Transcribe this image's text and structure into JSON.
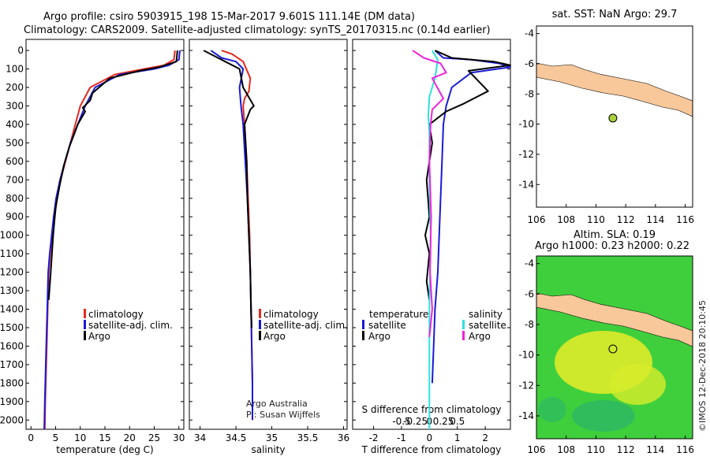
{
  "header": {
    "line1": "Argo profile: csiro 5903915_198 15-Mar-2017 9.601S 111.14E (DM data)",
    "line2": "Climatology: CARS2009. Satellite-adjusted climatology: synTS_20170315.nc (0.14d earlier)"
  },
  "colors": {
    "climatology": "#e8281e",
    "satellite": "#1a1ad6",
    "argo": "#000000",
    "sal_sat": "#2ee0e0",
    "sal_argo": "#ee22dd",
    "land": "#f8c89a",
    "sst_bg": "#ffffff",
    "sla_green": "#3fcf3c",
    "sla_yellow": "#e8ec28"
  },
  "depth_axis": {
    "ticks": [
      0,
      100,
      200,
      300,
      400,
      500,
      600,
      700,
      800,
      900,
      1000,
      1100,
      1200,
      1300,
      1400,
      1500,
      1600,
      1700,
      1800,
      1900,
      2000
    ],
    "range": [
      2050,
      -60
    ]
  },
  "panels": {
    "temperature": {
      "xlabel": "temperature (deg C)",
      "xticks": [
        0,
        5,
        10,
        15,
        20,
        25,
        30
      ],
      "legend": [
        "climatology",
        "satellite-adj. clim.",
        "Argo"
      ]
    },
    "salinity": {
      "xlabel": "salinity",
      "xticks": [
        "34",
        "34.5",
        "35",
        "35.5",
        "36"
      ],
      "legend": [
        "climatology",
        "satellite-adj. clim.",
        "Argo"
      ],
      "note1": "Argo Australia",
      "note2": "PI: Susan Wijffels"
    },
    "difference": {
      "xlabel": "T difference from climatology",
      "xticks_t": [
        "-2",
        "-1",
        "0",
        "1",
        "2"
      ],
      "xlabel_s": "S difference from climatology",
      "xticks_s": [
        "-0.5",
        "-0.25",
        "0",
        "0.25",
        "0.5"
      ],
      "legend_t_title": "temperature",
      "legend_s_title": "salinity",
      "legend_t": [
        "satellite",
        "Argo"
      ],
      "legend_s": [
        "satellite",
        "Argo"
      ]
    }
  },
  "maps": {
    "sst_title": "sat. SST: NaN Argo: 29.7",
    "sla_title1": "Altim. SLA: 0.19",
    "sla_title2": "Argo h1000: 0.23 h2000: 0.22",
    "xticks": [
      "106",
      "108",
      "110",
      "112",
      "114",
      "116"
    ],
    "yticks": [
      "-4",
      "-6",
      "-8",
      "-10",
      "-12",
      "-14"
    ],
    "float_lon": 111.14,
    "float_lat": -9.601,
    "credit": "©IMOS 12-Dec-2018 20:10:45"
  },
  "chart_data": [
    {
      "type": "line",
      "title": "",
      "xlabel": "temperature (deg C)",
      "ylabel": "",
      "xlim": [
        -1,
        31
      ],
      "ylim": [
        2050,
        -60
      ],
      "series": [
        {
          "name": "climatology",
          "x": [
            29.2,
            29,
            27,
            23,
            17,
            12,
            10,
            9,
            8,
            7,
            6,
            5.3,
            4.8,
            4.3,
            3.9,
            3.6,
            3.4,
            3.2,
            3,
            2.9,
            2.8
          ],
          "y": [
            0,
            50,
            80,
            100,
            130,
            200,
            300,
            400,
            500,
            600,
            700,
            800,
            900,
            1000,
            1100,
            1200,
            1400,
            1600,
            1800,
            1900,
            2050
          ]
        },
        {
          "name": "satellite-adj. clim.",
          "x": [
            30.2,
            30,
            28,
            25,
            18,
            13,
            11,
            9.5,
            8,
            6.9,
            5.9,
            5.1,
            4.6,
            4.2,
            3.8,
            3.5,
            3.3,
            3.1,
            2.9,
            2.8,
            2.7
          ],
          "y": [
            0,
            50,
            80,
            100,
            130,
            200,
            300,
            400,
            500,
            600,
            700,
            800,
            900,
            1000,
            1100,
            1200,
            1400,
            1600,
            1800,
            1900,
            2050
          ]
        },
        {
          "name": "Argo",
          "x": [
            29.7,
            29.5,
            26,
            22,
            16,
            12.5,
            12,
            10.5,
            11,
            9.5,
            8.8,
            7.8,
            6.7,
            5.9,
            5,
            4.5,
            4,
            3.6
          ],
          "y": [
            0,
            60,
            90,
            110,
            150,
            230,
            270,
            310,
            330,
            400,
            450,
            520,
            620,
            720,
            850,
            1000,
            1200,
            1350
          ]
        }
      ]
    },
    {
      "type": "line",
      "title": "",
      "xlabel": "salinity",
      "ylabel": "",
      "xlim": [
        33.85,
        36.05
      ],
      "ylim": [
        2050,
        -60
      ],
      "series": [
        {
          "name": "climatology",
          "x": [
            34.3,
            34.45,
            34.6,
            34.7,
            34.68,
            34.62,
            34.6,
            34.62,
            34.65,
            34.67,
            34.69,
            34.7,
            34.71,
            34.72,
            34.73,
            34.73
          ],
          "y": [
            0,
            20,
            60,
            150,
            220,
            260,
            300,
            400,
            600,
            800,
            1000,
            1200,
            1400,
            1600,
            1800,
            2000
          ]
        },
        {
          "name": "satellite-adj. clim.",
          "x": [
            34.15,
            34.3,
            34.5,
            34.6,
            34.55,
            34.57,
            34.6,
            34.63,
            34.66,
            34.68,
            34.7,
            34.71,
            34.72,
            34.73,
            34.73
          ],
          "y": [
            0,
            40,
            60,
            100,
            200,
            300,
            400,
            600,
            800,
            1000,
            1200,
            1400,
            1600,
            1800,
            2000
          ]
        },
        {
          "name": "Argo",
          "x": [
            34.05,
            34.2,
            34.35,
            34.55,
            34.6,
            34.75,
            34.7,
            34.62,
            34.65,
            34.66,
            34.68,
            34.7,
            34.71,
            34.72
          ],
          "y": [
            0,
            30,
            60,
            100,
            200,
            300,
            320,
            400,
            600,
            800,
            1000,
            1200,
            1400,
            1500
          ]
        }
      ]
    },
    {
      "type": "line",
      "title": "",
      "xlabel": "T difference from climatology",
      "ylabel": "",
      "xlim": [
        -2.75,
        2.9
      ],
      "ylim": [
        2050,
        -60
      ],
      "series": [
        {
          "name": "temperature satellite",
          "x": [
            0.2,
            0.5,
            1.5,
            2.5,
            2.9,
            1.5,
            0.8,
            0.6,
            0.5,
            0.45,
            0.4,
            0.35,
            0.3,
            0.2,
            0.15,
            0.1
          ],
          "y": [
            0,
            40,
            50,
            70,
            90,
            120,
            200,
            300,
            400,
            600,
            800,
            1000,
            1200,
            1400,
            1600,
            1800
          ]
        },
        {
          "name": "temperature Argo",
          "x": [
            0.2,
            0.8,
            2.3,
            2.9,
            1.4,
            2.1,
            1.2,
            0.6,
            0,
            0.1,
            -0.1,
            0,
            -0.15,
            0,
            -0.1,
            0
          ],
          "y": [
            0,
            40,
            60,
            80,
            110,
            220,
            290,
            330,
            400,
            500,
            700,
            900,
            1000,
            1100,
            1250,
            1350
          ]
        },
        {
          "name": "salinity satellite",
          "x": [
            0.05,
            0.15,
            0.1,
            0,
            -0.02,
            0,
            0,
            0.02,
            0,
            0,
            0
          ],
          "y": [
            0,
            50,
            150,
            250,
            350,
            450,
            700,
            1000,
            1400,
            1800,
            2050
          ]
        },
        {
          "name": "salinity Argo",
          "x": [
            -0.3,
            -0.1,
            0.2,
            0.3,
            0.05,
            0.25,
            0.05,
            0.02,
            0,
            0.03,
            0.01,
            0.05,
            0
          ],
          "y": [
            0,
            40,
            70,
            120,
            150,
            260,
            320,
            400,
            600,
            900,
            1200,
            1400,
            1550
          ]
        }
      ]
    }
  ]
}
